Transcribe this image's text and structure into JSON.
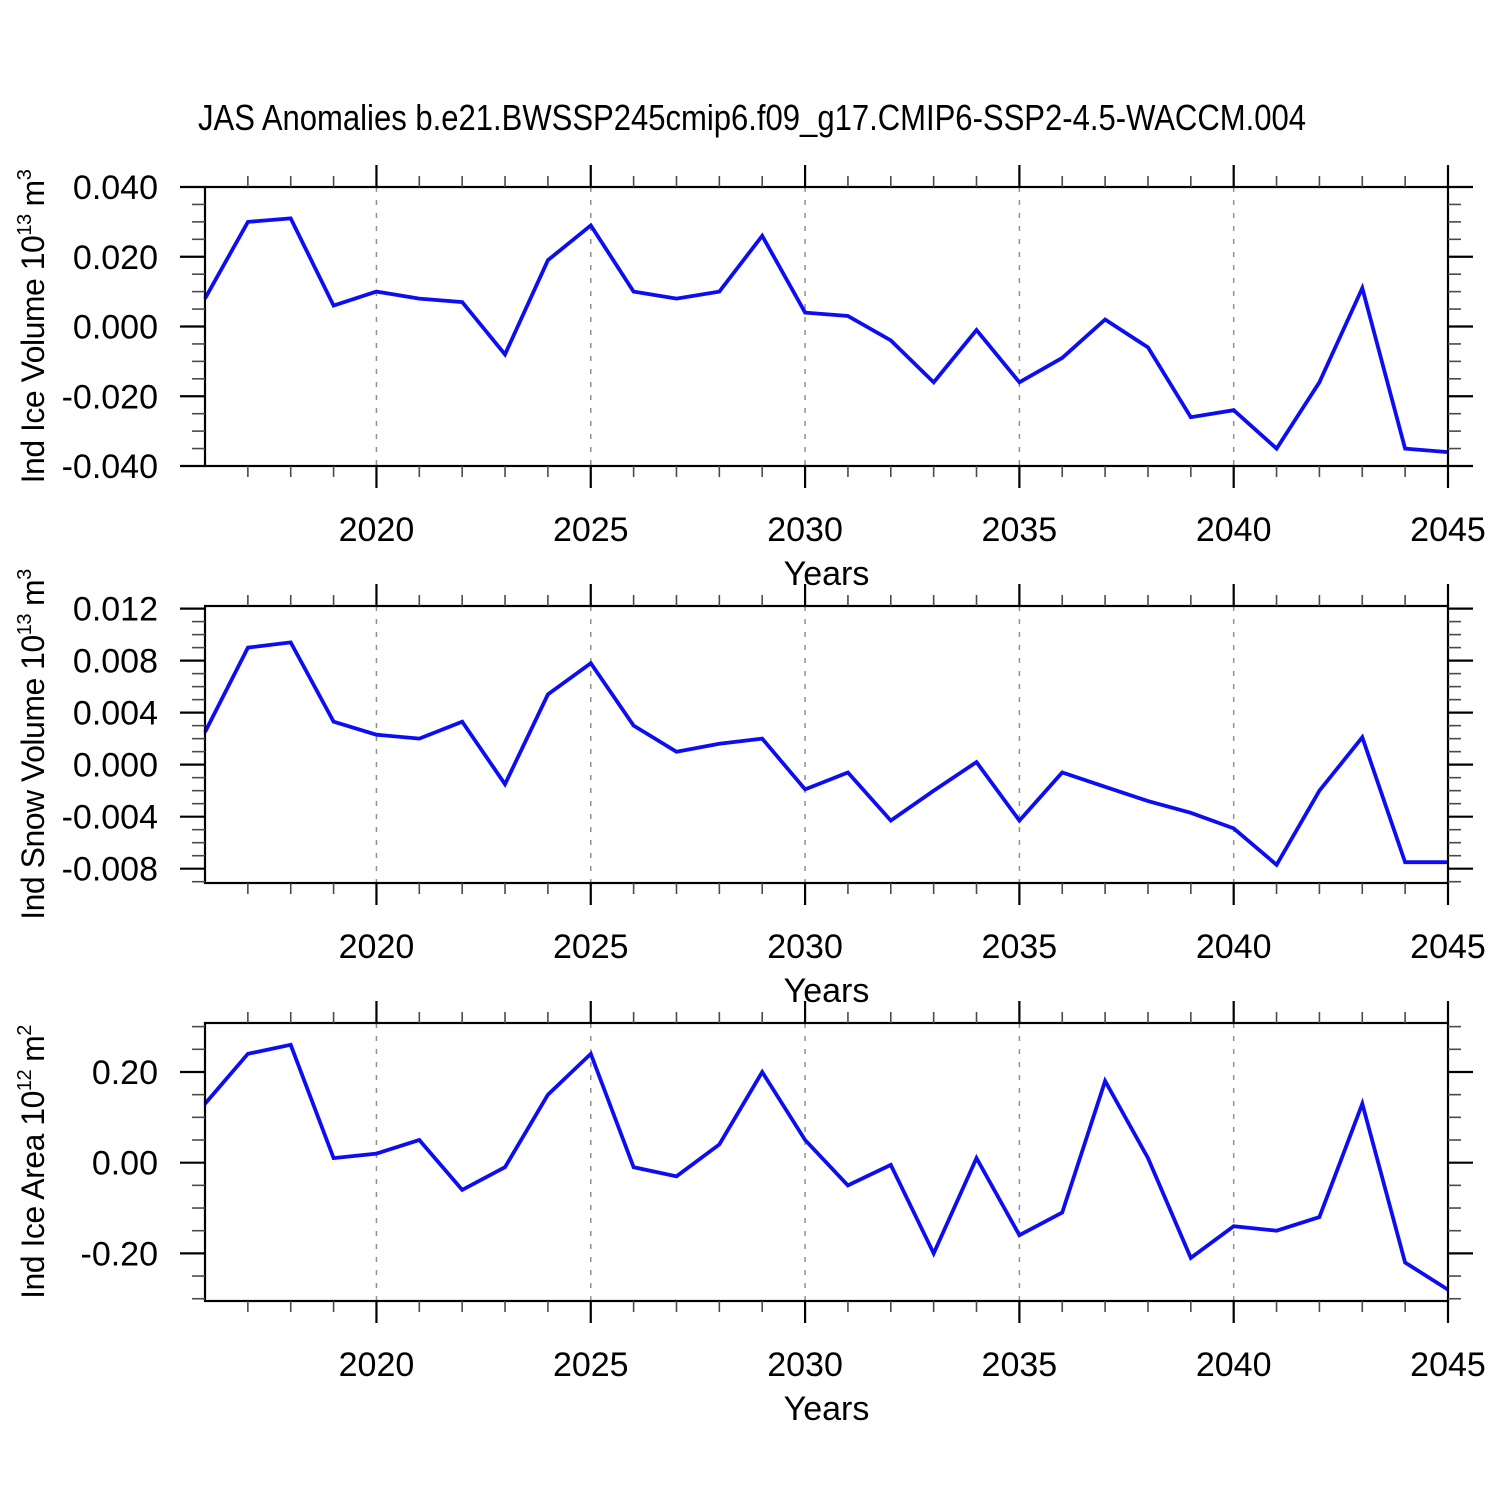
{
  "figure": {
    "title": "JAS Anomalies b.e21.BWSSP245cmip6.f09_g17.CMIP6-SSP2-4.5-WACCM.004",
    "background_color": "#ffffff",
    "line_color": "#0d0df2",
    "axis_color": "#000000",
    "minor_tick_color": "#4a4a4a",
    "grid_color": "#909090"
  },
  "chart_data": [
    {
      "type": "line",
      "ylabel_parts": [
        "Ind Ice Volume 10",
        {
          "sup": "13"
        },
        " m",
        {
          "sup": "3"
        }
      ],
      "xlabel": "Years",
      "x": [
        2016,
        2017,
        2018,
        2019,
        2020,
        2021,
        2022,
        2023,
        2024,
        2025,
        2026,
        2027,
        2028,
        2029,
        2030,
        2031,
        2032,
        2033,
        2034,
        2035,
        2036,
        2037,
        2038,
        2039,
        2040,
        2041,
        2042,
        2043,
        2044,
        2045
      ],
      "values": [
        0.008,
        0.03,
        0.031,
        0.006,
        0.01,
        0.008,
        0.007,
        -0.008,
        0.019,
        0.029,
        0.01,
        0.008,
        0.01,
        0.026,
        0.004,
        0.003,
        -0.004,
        -0.016,
        -0.001,
        -0.016,
        -0.009,
        0.002,
        -0.006,
        -0.026,
        -0.024,
        -0.035,
        -0.016,
        0.011,
        -0.035,
        -0.036
      ],
      "xlim": [
        2016,
        2045
      ],
      "ylim": [
        -0.04,
        0.04
      ],
      "yticks": [
        0.04,
        0.02,
        0.0,
        -0.02,
        -0.04
      ],
      "ytick_labels": [
        "0.040",
        "0.020",
        "0.000",
        "-0.020",
        "-0.040"
      ],
      "y_minor_step": 0.005,
      "y_major_step": 0.02,
      "xticks": [
        2020,
        2025,
        2030,
        2035,
        2040,
        2045
      ],
      "xtick_labels": [
        "2020",
        "2025",
        "2030",
        "2035",
        "2040",
        "2045"
      ],
      "x_minor_step": 1,
      "grid_years": [
        2020,
        2025,
        2030,
        2035,
        2040
      ],
      "grid_on": true
    },
    {
      "type": "line",
      "ylabel_parts": [
        "Ind Snow Volume 10",
        {
          "sup": "13"
        },
        " m",
        {
          "sup": "3"
        }
      ],
      "xlabel": "Years",
      "x": [
        2016,
        2017,
        2018,
        2019,
        2020,
        2021,
        2022,
        2023,
        2024,
        2025,
        2026,
        2027,
        2028,
        2029,
        2030,
        2031,
        2032,
        2033,
        2034,
        2035,
        2036,
        2037,
        2038,
        2039,
        2040,
        2041,
        2042,
        2043,
        2044,
        2045
      ],
      "values": [
        0.0025,
        0.009,
        0.0094,
        0.0033,
        0.0023,
        0.002,
        0.0033,
        -0.0015,
        0.0054,
        0.0078,
        0.003,
        0.001,
        0.0016,
        0.002,
        -0.0019,
        -0.0006,
        -0.0043,
        -0.002,
        0.0002,
        -0.0043,
        -0.0006,
        -0.0017,
        -0.0028,
        -0.0037,
        -0.0049,
        -0.0077,
        -0.002,
        0.0021,
        -0.0075,
        -0.0075
      ],
      "xlim": [
        2016,
        2045
      ],
      "ylim": [
        -0.0091,
        0.0122
      ],
      "yticks": [
        0.012,
        0.008,
        0.004,
        0.0,
        -0.004,
        -0.008
      ],
      "ytick_labels": [
        "0.012",
        "0.008",
        "0.004",
        "0.000",
        "-0.004",
        "-0.008"
      ],
      "y_minor_step": 0.001,
      "y_major_step": 0.004,
      "xticks": [
        2020,
        2025,
        2030,
        2035,
        2040,
        2045
      ],
      "xtick_labels": [
        "2020",
        "2025",
        "2030",
        "2035",
        "2040",
        "2045"
      ],
      "x_minor_step": 1,
      "grid_years": [
        2020,
        2025,
        2030,
        2035,
        2040
      ],
      "grid_on": true
    },
    {
      "type": "line",
      "ylabel_parts": [
        "Ind Ice Area 10",
        {
          "sup": "12"
        },
        " m",
        {
          "sup": "2"
        }
      ],
      "xlabel": "Years",
      "x": [
        2016,
        2017,
        2018,
        2019,
        2020,
        2021,
        2022,
        2023,
        2024,
        2025,
        2026,
        2027,
        2028,
        2029,
        2030,
        2031,
        2032,
        2033,
        2034,
        2035,
        2036,
        2037,
        2038,
        2039,
        2040,
        2041,
        2042,
        2043,
        2044,
        2045
      ],
      "values": [
        0.13,
        0.24,
        0.26,
        0.01,
        0.02,
        0.05,
        -0.06,
        -0.01,
        0.15,
        0.24,
        -0.01,
        -0.03,
        0.04,
        0.2,
        0.05,
        -0.05,
        -0.005,
        -0.2,
        0.01,
        -0.16,
        -0.11,
        0.18,
        0.01,
        -0.21,
        -0.14,
        -0.15,
        -0.12,
        0.13,
        -0.22,
        -0.28
      ],
      "xlim": [
        2016,
        2045
      ],
      "ylim": [
        -0.305,
        0.308
      ],
      "yticks": [
        0.2,
        0.0,
        -0.2
      ],
      "ytick_labels": [
        "0.20",
        "0.00",
        "-0.20"
      ],
      "y_minor_step": 0.05,
      "y_major_step": 0.2,
      "xticks": [
        2020,
        2025,
        2030,
        2035,
        2040,
        2045
      ],
      "xtick_labels": [
        "2020",
        "2025",
        "2030",
        "2035",
        "2040",
        "2045"
      ],
      "x_minor_step": 1,
      "grid_years": [
        2020,
        2025,
        2030,
        2035,
        2040
      ],
      "grid_on": true
    }
  ]
}
